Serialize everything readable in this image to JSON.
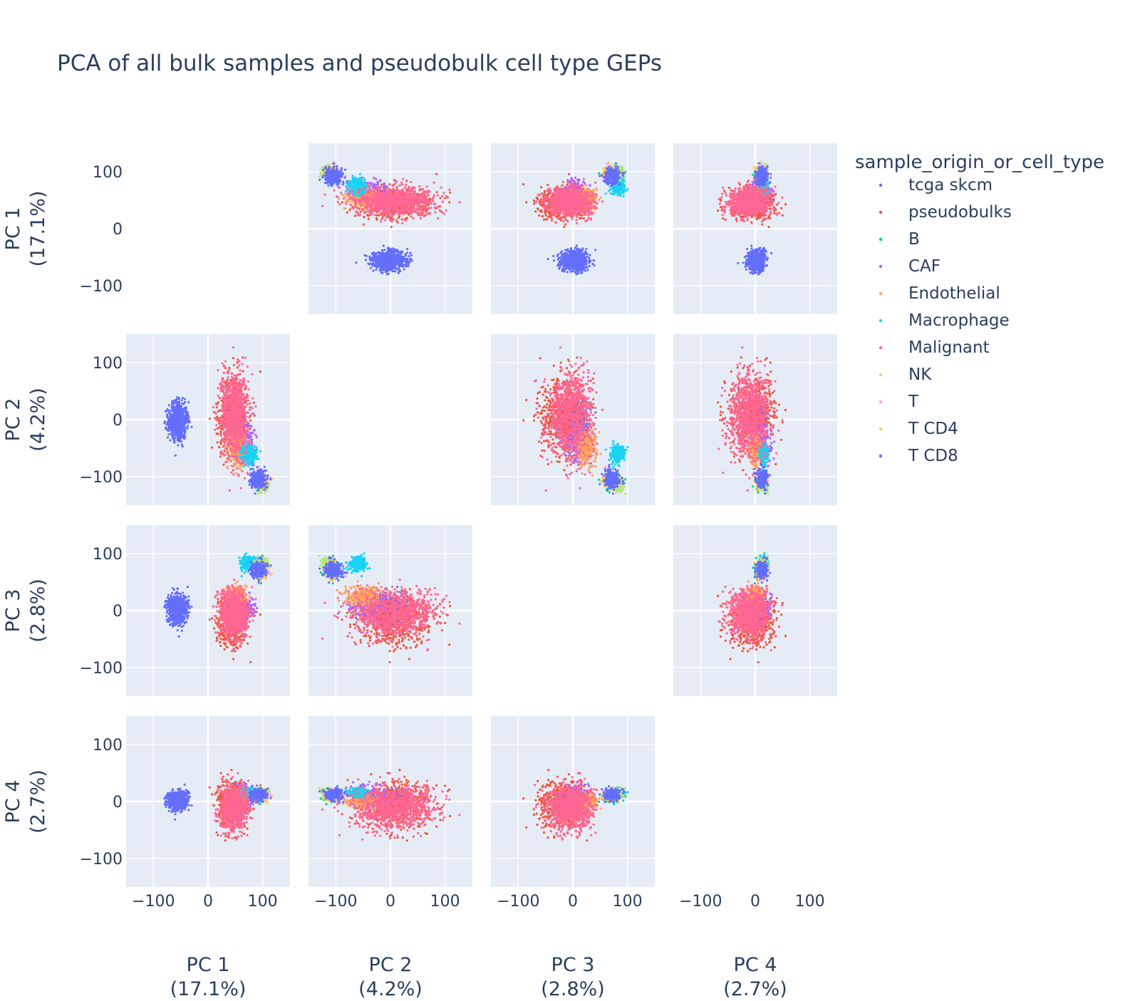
{
  "chart_data": {
    "type": "scatter",
    "title": "PCA of all bulk samples and pseudobulk cell type GEPs",
    "dimensions": [
      {
        "label": "PC 1",
        "variance": "(17.1%)"
      },
      {
        "label": "PC 2",
        "variance": "(4.2%)"
      },
      {
        "label": "PC 3",
        "variance": "(2.8%)"
      },
      {
        "label": "PC 4",
        "variance": "(2.7%)"
      }
    ],
    "axis_range": [
      -150,
      150
    ],
    "ticks": [
      -100,
      0,
      100
    ],
    "tick_labels": [
      "−100",
      "0",
      "100"
    ],
    "grid": true,
    "diagonal_empty": true,
    "legend_title": "sample_origin_or_cell_type",
    "legend_position": "right",
    "series": [
      {
        "name": "tcga skcm",
        "color": "#636efa",
        "centroid": [
          -55,
          -1,
          3,
          2
        ],
        "spread": [
          9,
          16,
          12,
          8
        ],
        "points": 700
      },
      {
        "name": "pseudobulks",
        "color": "#EF553B",
        "centroid": [
          45,
          10,
          -20,
          -5
        ],
        "spread": [
          14,
          34,
          22,
          22
        ],
        "points": 500
      },
      {
        "name": "B",
        "color": "#00cc96",
        "centroid": [
          95,
          -108,
          72,
          8
        ],
        "spread": [
          6,
          8,
          8,
          5
        ],
        "points": 60
      },
      {
        "name": "CAF",
        "color": "#ab63fa",
        "centroid": [
          65,
          -40,
          5,
          8
        ],
        "spread": [
          10,
          18,
          12,
          10
        ],
        "points": 200
      },
      {
        "name": "Endothelial",
        "color": "#FFA15A",
        "centroid": [
          55,
          -50,
          25,
          0
        ],
        "spread": [
          8,
          14,
          10,
          6
        ],
        "points": 250
      },
      {
        "name": "Macrophage",
        "color": "#19d3f3",
        "centroid": [
          75,
          -60,
          82,
          15
        ],
        "spread": [
          7,
          8,
          6,
          4
        ],
        "points": 250
      },
      {
        "name": "Malignant",
        "color": "#FF6692",
        "centroid": [
          48,
          10,
          -5,
          -10
        ],
        "spread": [
          12,
          38,
          20,
          18
        ],
        "points": 900
      },
      {
        "name": "NK",
        "color": "#B6E880",
        "centroid": [
          100,
          -115,
          82,
          15
        ],
        "spread": [
          6,
          6,
          6,
          4
        ],
        "points": 150
      },
      {
        "name": "T",
        "color": "#FF97FF",
        "centroid": [
          95,
          -105,
          70,
          12
        ],
        "spread": [
          6,
          6,
          6,
          4
        ],
        "points": 120
      },
      {
        "name": "T CD4",
        "color": "#FECB52",
        "centroid": [
          98,
          -108,
          68,
          10
        ],
        "spread": [
          6,
          6,
          6,
          4
        ],
        "points": 120
      },
      {
        "name": "T CD8",
        "color": "#636efa",
        "centroid": [
          92,
          -105,
          72,
          12
        ],
        "spread": [
          7,
          8,
          7,
          5
        ],
        "points": 250
      }
    ]
  }
}
